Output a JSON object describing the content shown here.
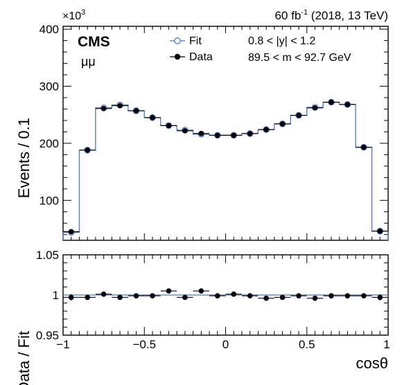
{
  "header": {
    "exponent_label": "×10",
    "exponent_power": "3",
    "lumi_text": "60 fb",
    "lumi_power": "-1",
    "lumi_rest": " (2018, 13 TeV)"
  },
  "labels": {
    "experiment": "CMS",
    "channel": "μμ",
    "y_range": "0.8 < |y| < 1.2",
    "mass_range": "89.5 < m < 92.7 GeV"
  },
  "legend": {
    "fit_label": "Fit",
    "data_label": "Data"
  },
  "colors": {
    "fit": "#4a74d6",
    "data": "#000000",
    "ratio_line": "#4a74d6"
  },
  "chart_data": [
    {
      "type": "line",
      "title": "",
      "xlabel": "",
      "ylabel": "Events / 0.1",
      "y_unit_multiplier": "×10³",
      "xlim": [
        -1,
        1
      ],
      "ylim": [
        30,
        405
      ],
      "yticks": [
        "100",
        "200",
        "300",
        "400"
      ],
      "x_bin_edges": [
        -1.0,
        -0.9,
        -0.8,
        -0.7,
        -0.6,
        -0.5,
        -0.4,
        -0.3,
        -0.2,
        -0.1,
        0.0,
        0.1,
        0.2,
        0.3,
        0.4,
        0.5,
        0.6,
        0.7,
        0.8,
        0.9,
        1.0
      ],
      "series": [
        {
          "name": "Fit",
          "style": "step-histogram",
          "values": [
            44,
            188,
            262,
            267,
            257,
            245,
            231,
            223,
            216,
            214,
            214,
            217,
            224,
            234,
            249,
            263,
            272,
            268,
            193,
            46
          ]
        },
        {
          "name": "Data",
          "style": "points-with-xerr",
          "values": [
            45,
            188,
            261,
            266,
            257,
            245,
            231,
            222,
            217,
            214,
            214,
            217,
            224,
            234,
            249,
            262,
            272,
            268,
            193,
            46
          ]
        }
      ]
    },
    {
      "type": "scatter",
      "title": "",
      "xlabel": "cosθ",
      "ylabel": "Data / Fit",
      "xlim": [
        -1,
        1
      ],
      "ylim": [
        0.95,
        1.05
      ],
      "xticks": [
        "−1",
        "−0.5",
        "0",
        "0.5",
        "1"
      ],
      "yticks": [
        "0.95",
        "1",
        "1.05"
      ],
      "reference_line": 1.0,
      "x": [
        -0.95,
        -0.85,
        -0.75,
        -0.65,
        -0.55,
        -0.45,
        -0.35,
        -0.25,
        -0.15,
        -0.05,
        0.05,
        0.15,
        0.25,
        0.35,
        0.45,
        0.55,
        0.65,
        0.75,
        0.85,
        0.95
      ],
      "values": [
        0.997,
        0.997,
        1.001,
        0.997,
        0.999,
        0.999,
        1.005,
        0.997,
        1.005,
        0.999,
        1.001,
        0.999,
        0.996,
        0.997,
        0.999,
        0.996,
        0.999,
        0.999,
        0.999,
        0.997
      ],
      "errors": [
        0.004,
        0.002,
        0.0015,
        0.0015,
        0.0015,
        0.0015,
        0.0015,
        0.0015,
        0.0015,
        0.0015,
        0.0015,
        0.0015,
        0.0015,
        0.0015,
        0.0015,
        0.0015,
        0.0015,
        0.0015,
        0.002,
        0.004
      ]
    }
  ]
}
